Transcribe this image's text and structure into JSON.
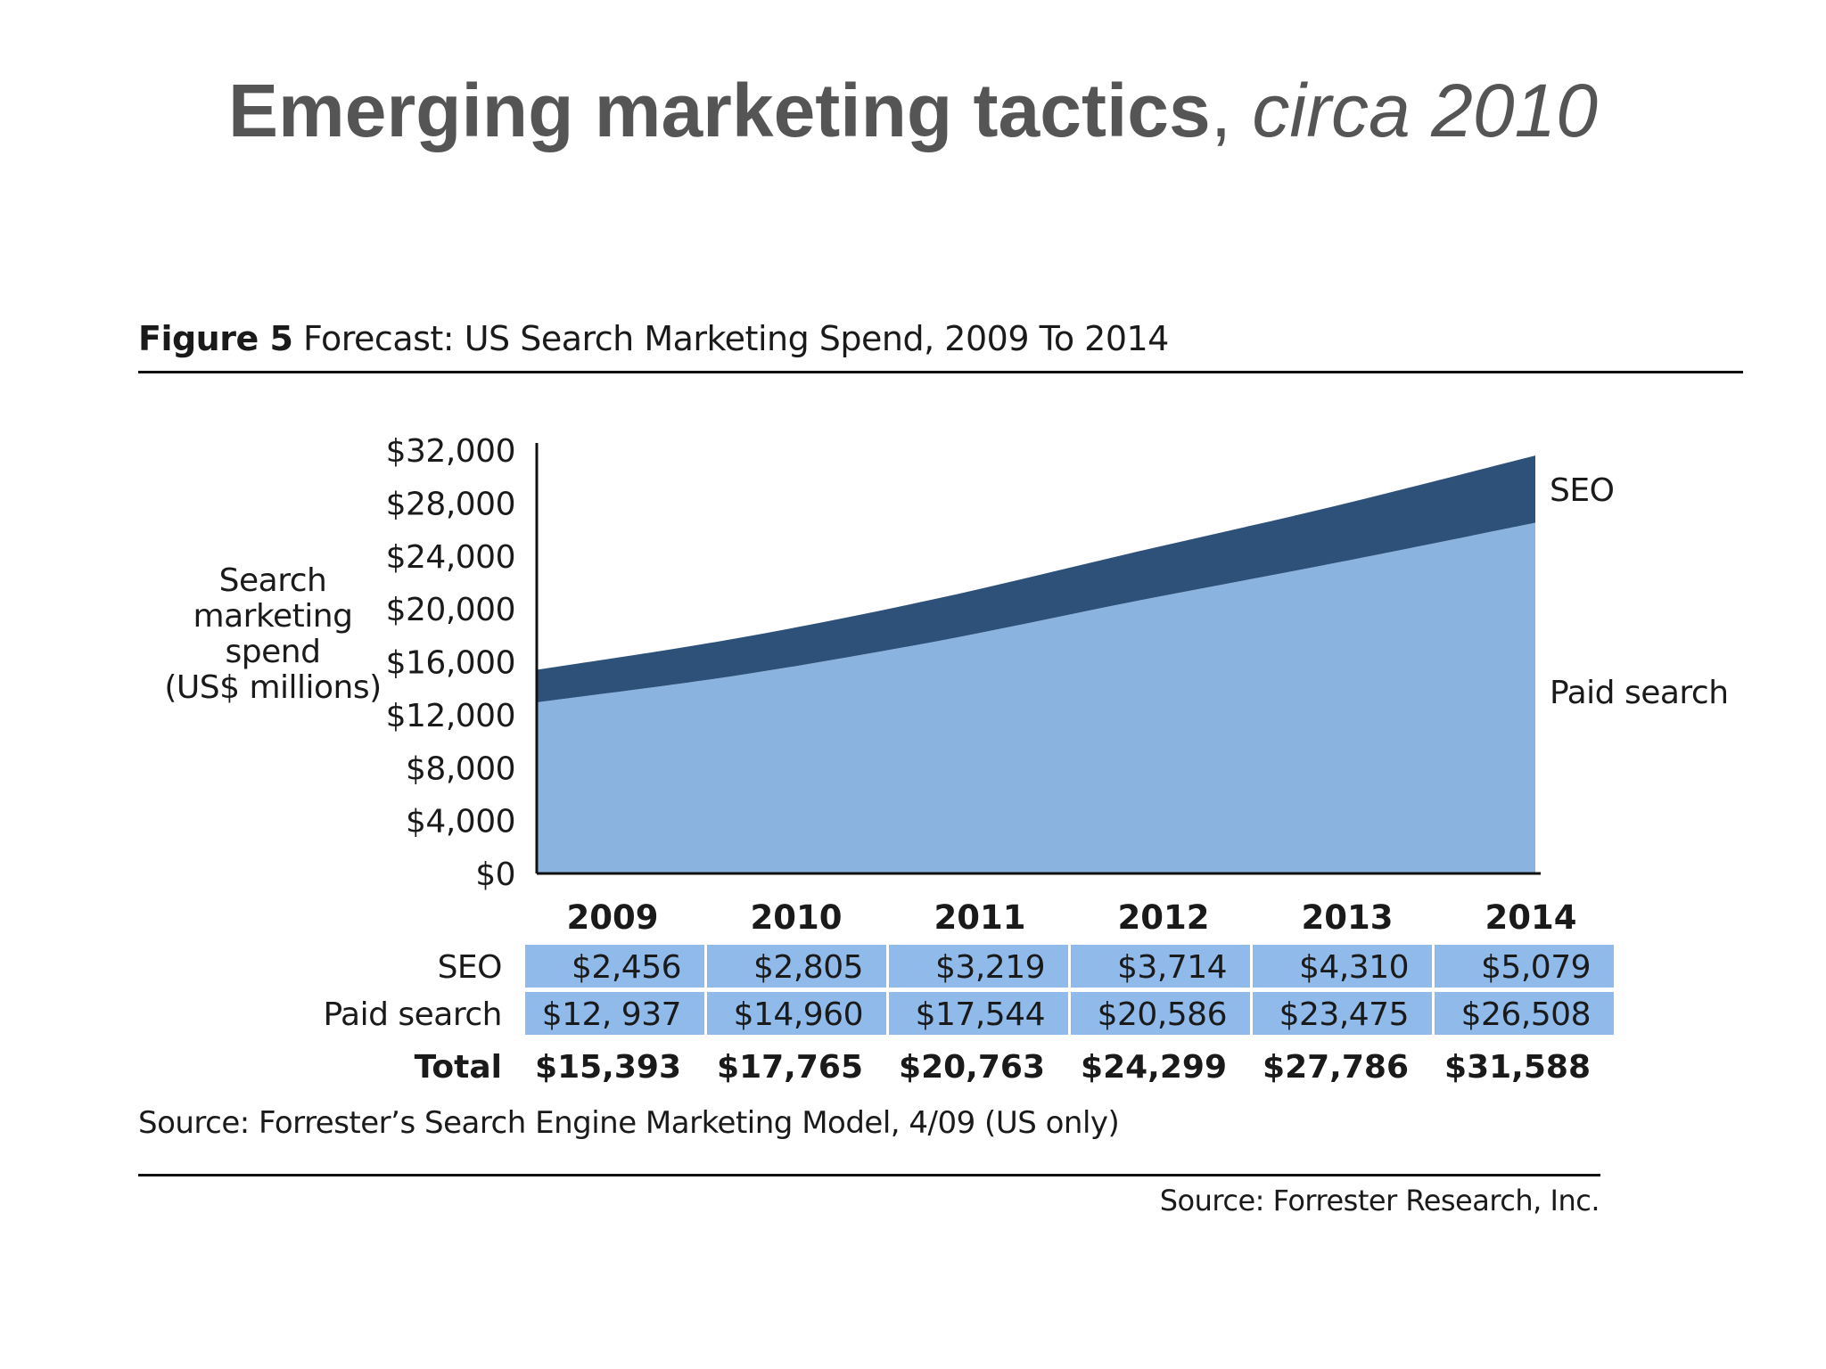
{
  "slide": {
    "title_bold": "Emerging marketing tactics",
    "title_sep": ", ",
    "title_italic": "circa 2010"
  },
  "figure": {
    "number": "Figure 5",
    "caption": "Forecast: US Search Marketing Spend, 2009 To 2014",
    "source": "Source: Forrester’s Search Engine Marketing Model, 4/09 (US only)",
    "credit": "Source: Forrester Research, Inc."
  },
  "colors": {
    "seo": "#2d5178",
    "paid": "#8ab3e0",
    "table_cell": "#8fbaea",
    "axis": "#111111"
  },
  "chart_data": {
    "type": "area",
    "stacked": true,
    "x": [
      "2009",
      "2010",
      "2011",
      "2012",
      "2013",
      "2014"
    ],
    "ylabel_lines": [
      "Search",
      "marketing",
      "spend",
      "(US$ millions)"
    ],
    "ylim": [
      0,
      32000
    ],
    "yticks": [
      0,
      4000,
      8000,
      12000,
      16000,
      20000,
      24000,
      28000,
      32000
    ],
    "ytick_labels": [
      "$0",
      "$4,000",
      "$8,000",
      "$12,000",
      "$16,000",
      "$20,000",
      "$24,000",
      "$28,000",
      "$32,000"
    ],
    "grid": false,
    "series": [
      {
        "name": "Paid search",
        "values": [
          12937,
          14960,
          17544,
          20586,
          23475,
          26508
        ],
        "labels": [
          "$12, 937",
          "$14,960",
          "$17,544",
          "$20,586",
          "$23,475",
          "$26,508"
        ]
      },
      {
        "name": "SEO",
        "values": [
          2456,
          2805,
          3219,
          3714,
          4310,
          5079
        ],
        "labels": [
          "$2,456",
          "$2,805",
          "$3,219",
          "$3,714",
          "$4,310",
          "$5,079"
        ]
      }
    ],
    "table_row_labels": [
      "SEO",
      "Paid search"
    ],
    "total_label": "Total",
    "totals": [
      "$15,393",
      "$17,765",
      "$20,763",
      "$24,299",
      "$27,786",
      "$31,588"
    ]
  }
}
